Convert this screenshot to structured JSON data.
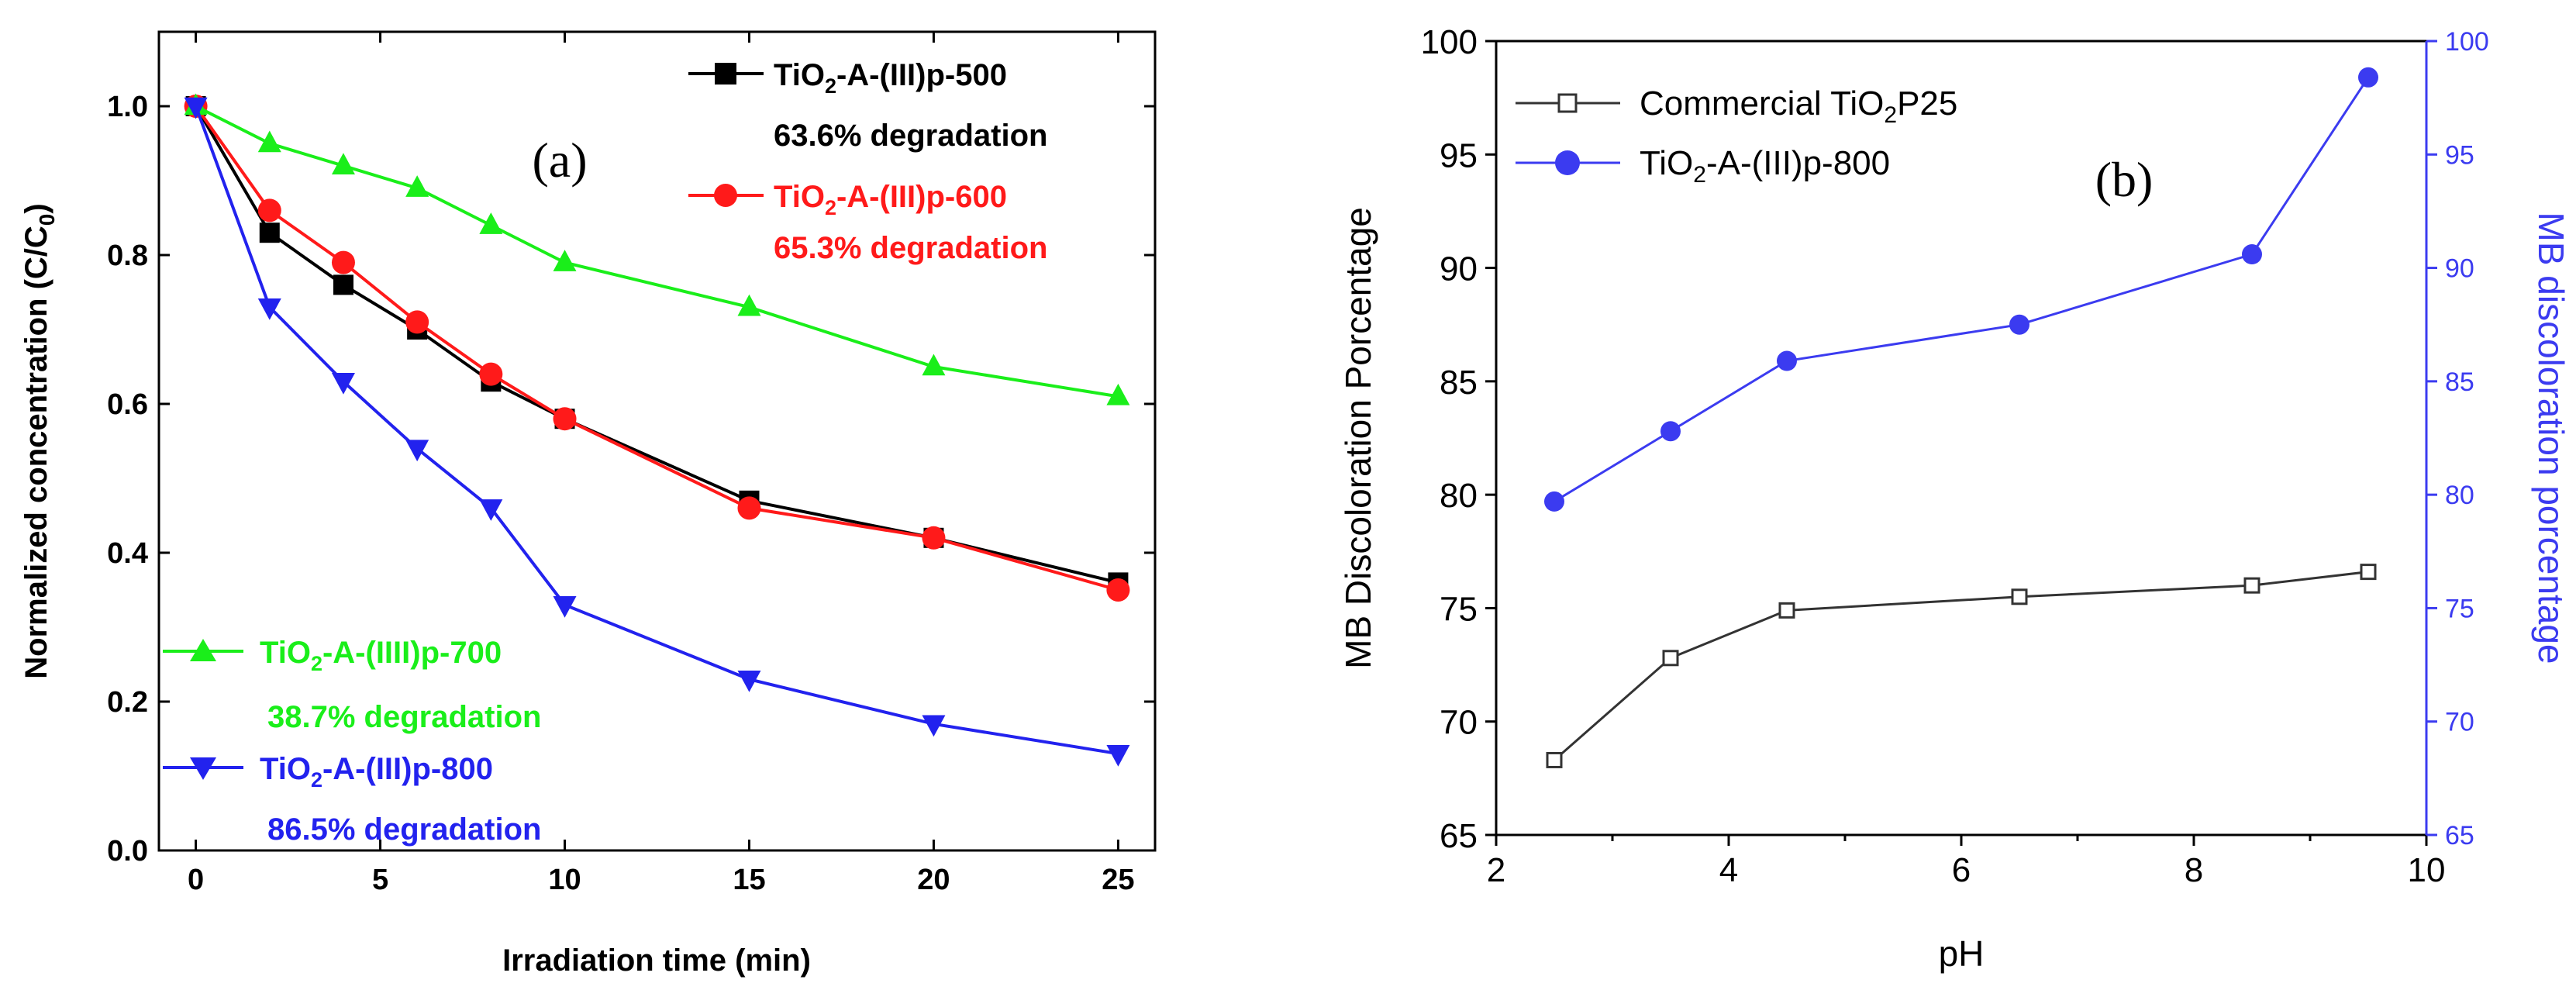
{
  "chart_data": [
    {
      "panel_label": "(a)",
      "type": "line",
      "xlabel": "Irradiation time (min)",
      "ylabel": "Normalized concentration (C/C0)",
      "xlim": [
        -1,
        26
      ],
      "ylim": [
        0,
        1.1
      ],
      "xticks": [
        0,
        5,
        10,
        15,
        20,
        25
      ],
      "yticks": [
        0.0,
        0.2,
        0.4,
        0.6,
        0.8,
        1.0
      ],
      "xtick_labels": [
        "0",
        "5",
        "10",
        "15",
        "20",
        "25"
      ],
      "ytick_labels": [
        "0.0",
        "0.2",
        "0.4",
        "0.6",
        "0.8",
        "1.0"
      ],
      "grid": false,
      "series": [
        {
          "name": "TiO2-A-(III)p-500",
          "annotation": "63.6% degradation",
          "color": "#000000",
          "marker": "square",
          "x": [
            0,
            2,
            4,
            6,
            8,
            10,
            15,
            20,
            25
          ],
          "values": [
            1.0,
            0.83,
            0.76,
            0.7,
            0.63,
            0.58,
            0.47,
            0.42,
            0.36
          ]
        },
        {
          "name": "TiO2-A-(III)p-600",
          "annotation": "65.3% degradation",
          "color": "#ff1a1a",
          "marker": "circle",
          "x": [
            0,
            2,
            4,
            6,
            8,
            10,
            15,
            20,
            25
          ],
          "values": [
            1.0,
            0.86,
            0.79,
            0.71,
            0.64,
            0.58,
            0.46,
            0.42,
            0.35
          ]
        },
        {
          "name": "TiO2-A-(IIII)p-700",
          "annotation": "38.7% degradation",
          "color": "#1aee1a",
          "marker": "triangle-up",
          "x": [
            0,
            2,
            4,
            6,
            8,
            10,
            15,
            20,
            25
          ],
          "values": [
            1.0,
            0.95,
            0.92,
            0.89,
            0.84,
            0.79,
            0.73,
            0.65,
            0.61
          ]
        },
        {
          "name": "TiO2-A-(III)p-800",
          "annotation": "86.5% degradation",
          "color": "#2222ee",
          "marker": "triangle-down",
          "x": [
            0,
            2,
            4,
            6,
            8,
            10,
            15,
            20,
            25
          ],
          "values": [
            1.0,
            0.73,
            0.63,
            0.54,
            0.46,
            0.33,
            0.23,
            0.17,
            0.13
          ]
        }
      ]
    },
    {
      "panel_label": "(b)",
      "type": "line",
      "xlabel": "pH",
      "ylabel": "MB Discoloration Porcentage",
      "ylabel_right": "MB discoloration porcentage",
      "xlim": [
        2,
        10
      ],
      "ylim": [
        65,
        100
      ],
      "ylim_right": [
        65,
        100
      ],
      "xticks": [
        2,
        4,
        6,
        8,
        10
      ],
      "yticks": [
        65,
        70,
        75,
        80,
        85,
        90,
        95,
        100
      ],
      "xtick_labels": [
        "2",
        "4",
        "6",
        "8",
        "10"
      ],
      "ytick_labels": [
        "65",
        "70",
        "75",
        "80",
        "85",
        "90",
        "95",
        "100"
      ],
      "grid": false,
      "legend_position": "top-left",
      "series": [
        {
          "name": "Commercial TiO2P25",
          "color": "#333333",
          "marker": "square-open",
          "axis": "left",
          "x": [
            2.5,
            3.5,
            4.5,
            6.5,
            8.5,
            9.5
          ],
          "values": [
            68.3,
            72.8,
            74.9,
            75.5,
            76.0,
            76.6
          ]
        },
        {
          "name": "TiO2-A-(III)p-800",
          "color": "#3b3bf0",
          "marker": "circle",
          "axis": "right",
          "x": [
            2.5,
            3.5,
            4.5,
            6.5,
            8.5,
            9.5
          ],
          "values": [
            79.7,
            82.8,
            85.9,
            87.5,
            90.6,
            98.4
          ]
        }
      ]
    }
  ]
}
